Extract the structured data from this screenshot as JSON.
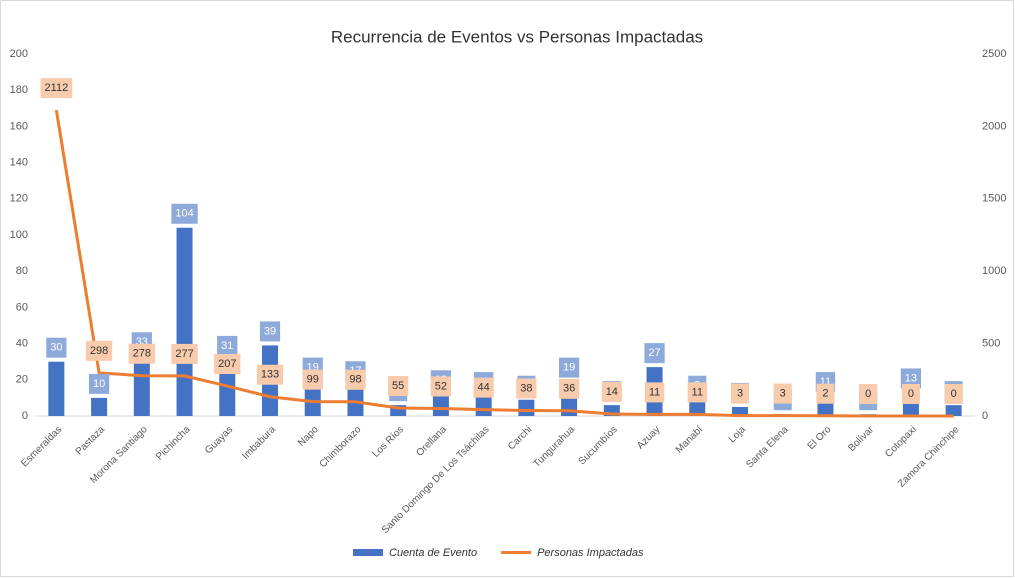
{
  "chart_data": {
    "type": "bar_line",
    "title": "Recurrencia de Eventos vs Personas Impactadas",
    "categories": [
      "Esmeraldas",
      "Pastaza",
      "Morona Santiago",
      "Pichincha",
      "Guayas",
      "Imbabura",
      "Napo",
      "Chimborazo",
      "Los Ríos",
      "Orellana",
      "Santo Domingo De Los Tsáchilas",
      "Carchi",
      "Tungurahua",
      "Sucumbíos",
      "Azuay",
      "Manabí",
      "Loja",
      "Santa Elena",
      "El Oro",
      "Bolívar",
      "Cotopaxi",
      "Zamora Chinchipe"
    ],
    "series": [
      {
        "name": "Cuenta de Evento",
        "color": "#4472c4",
        "type": "bar",
        "axis": "y",
        "values": [
          30,
          10,
          33,
          104,
          31,
          39,
          19,
          17,
          6,
          12,
          11,
          9,
          19,
          6,
          27,
          9,
          5,
          1,
          11,
          1,
          13,
          6
        ]
      },
      {
        "name": "Personas Impactadas",
        "color": "#ed7d31",
        "type": "line",
        "axis": "y2",
        "values": [
          2112,
          298,
          278,
          277,
          207,
          133,
          99,
          98,
          55,
          52,
          44,
          38,
          36,
          14,
          11,
          11,
          3,
          3,
          2,
          0,
          0,
          0
        ]
      }
    ],
    "ylim": [
      0,
      200
    ],
    "yticks": [
      0,
      20,
      40,
      60,
      80,
      100,
      120,
      140,
      160,
      180,
      200
    ],
    "y2lim": [
      0,
      2500
    ],
    "y2ticks": [
      0,
      500,
      1000,
      1500,
      2000,
      2500
    ],
    "legend": "bottom"
  }
}
